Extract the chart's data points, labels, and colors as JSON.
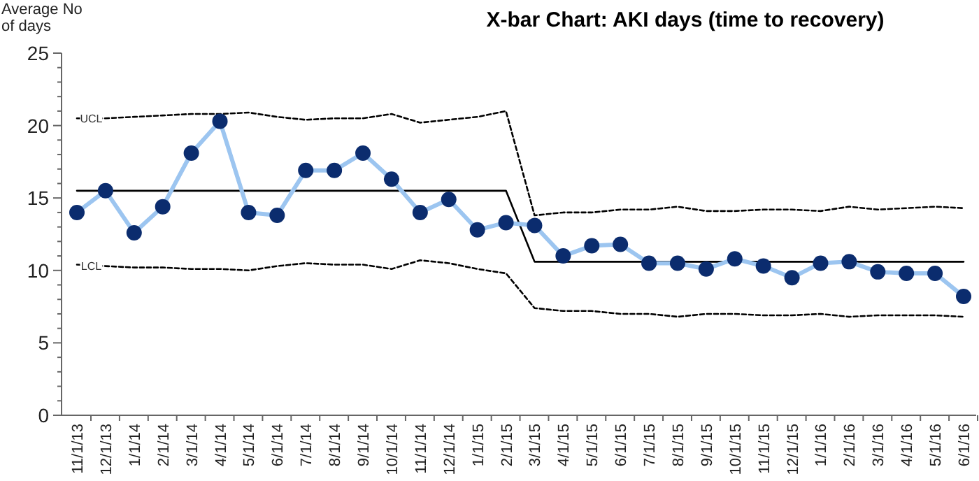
{
  "chart_data": {
    "type": "line",
    "title": "X-bar Chart: AKI days (time to recovery)",
    "ylabel": "Average No of days",
    "categories": [
      "11/1/13",
      "12/1/13",
      "1/1/14",
      "2/1/14",
      "3/1/14",
      "4/1/14",
      "5/1/14",
      "6/1/14",
      "7/1/14",
      "8/1/14",
      "9/1/14",
      "10/1/14",
      "11/1/14",
      "12/1/14",
      "1/1/15",
      "2/1/15",
      "3/1/15",
      "4/1/15",
      "5/1/15",
      "6/1/15",
      "7/1/15",
      "8/1/15",
      "9/1/15",
      "10/1/15",
      "11/1/15",
      "12/1/15",
      "1/1/16",
      "2/1/16",
      "3/1/16",
      "4/1/16",
      "5/1/16",
      "6/1/16"
    ],
    "series": [
      {
        "color": "#9cc5f0",
        "marker": "none",
        "line_style": "solid",
        "values": [
          14.0,
          15.5,
          12.6,
          14.4,
          18.1,
          20.3,
          14.0,
          13.8,
          16.9,
          16.9,
          18.1,
          16.3,
          14.0,
          14.9,
          12.8,
          13.3,
          13.1,
          11.0,
          11.7,
          11.8,
          10.5,
          10.5,
          10.1,
          10.8,
          10.3,
          9.5,
          10.5,
          10.6,
          9.9,
          9.8,
          9.8,
          8.2
        ]
      },
      {
        "type": "scatter",
        "color": "#0b2c6e",
        "marker": "circle",
        "values": [
          14.0,
          15.5,
          12.6,
          14.4,
          18.1,
          20.3,
          14.0,
          13.8,
          16.9,
          16.9,
          18.1,
          16.3,
          14.0,
          14.9,
          12.8,
          13.3,
          13.1,
          11.0,
          11.7,
          11.8,
          10.5,
          10.5,
          10.1,
          10.8,
          10.3,
          9.5,
          10.5,
          10.6,
          9.9,
          9.8,
          9.8,
          8.2
        ]
      },
      {
        "color": "#000000",
        "marker": "none",
        "line_style": "solid",
        "values": [
          15.5,
          15.5,
          15.5,
          15.5,
          15.5,
          15.5,
          15.5,
          15.5,
          15.5,
          15.5,
          15.5,
          15.5,
          15.5,
          15.5,
          15.5,
          15.5,
          10.6,
          10.6,
          10.6,
          10.6,
          10.6,
          10.6,
          10.6,
          10.6,
          10.6,
          10.6,
          10.6,
          10.6,
          10.6,
          10.6,
          10.6,
          10.6
        ]
      },
      {
        "name": "UCL",
        "color": "#000000",
        "marker": "none",
        "line_style": "dashed",
        "values": [
          20.5,
          20.5,
          20.6,
          20.7,
          20.8,
          20.8,
          20.9,
          20.6,
          20.4,
          20.5,
          20.5,
          20.8,
          20.2,
          20.4,
          20.6,
          21.0,
          13.8,
          14.0,
          14.0,
          14.2,
          14.2,
          14.4,
          14.1,
          14.1,
          14.2,
          14.2,
          14.1,
          14.4,
          14.2,
          14.3,
          14.4,
          14.3
        ]
      },
      {
        "name": "LCL",
        "color": "#000000",
        "marker": "none",
        "line_style": "dashed",
        "values": [
          10.4,
          10.3,
          10.2,
          10.2,
          10.1,
          10.1,
          10.0,
          10.3,
          10.5,
          10.4,
          10.4,
          10.1,
          10.7,
          10.5,
          10.1,
          9.8,
          7.4,
          7.2,
          7.2,
          7.0,
          7.0,
          6.8,
          7.0,
          7.0,
          6.9,
          6.9,
          7.0,
          6.8,
          6.9,
          6.9,
          6.9,
          6.8
        ]
      }
    ],
    "ylim": [
      0,
      25
    ],
    "yticks": [
      0,
      {
        "value": 1,
        "label": null
      },
      {
        "value": 2,
        "label": null
      },
      {
        "value": 3,
        "label": null
      },
      {
        "value": 4,
        "label": null
      },
      5,
      {
        "value": 6,
        "label": null
      },
      {
        "value": 7,
        "label": null
      },
      {
        "value": 8,
        "label": null
      },
      {
        "value": 9,
        "label": null
      },
      10,
      {
        "value": 11,
        "label": null
      },
      {
        "value": 12,
        "label": null
      },
      {
        "value": 13,
        "label": null
      },
      {
        "value": 14,
        "label": null
      },
      15,
      {
        "value": 16,
        "label": null
      },
      {
        "value": 17,
        "label": null
      },
      {
        "value": 18,
        "label": null
      },
      {
        "value": 19,
        "label": null
      },
      20,
      {
        "value": 21,
        "label": null
      },
      {
        "value": 22,
        "label": null
      },
      {
        "value": 23,
        "label": null
      },
      {
        "value": 24,
        "label": null
      },
      25
    ],
    "grid": false
  }
}
